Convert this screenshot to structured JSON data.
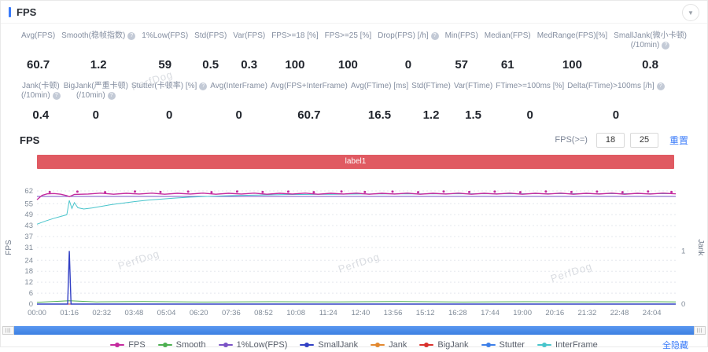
{
  "panel": {
    "title": "FPS"
  },
  "watermark": "PerfDog",
  "stats": {
    "row1": [
      {
        "lines": [
          "Avg(FPS)"
        ],
        "info": false,
        "value": "60.7"
      },
      {
        "lines": [
          "Smooth(稳帧指数)"
        ],
        "info": true,
        "value": "1.2"
      },
      {
        "lines": [
          "1%Low(FPS)"
        ],
        "info": false,
        "value": "59"
      },
      {
        "lines": [
          "Std(FPS)"
        ],
        "info": false,
        "value": "0.5"
      },
      {
        "lines": [
          "Var(FPS)"
        ],
        "info": false,
        "value": "0.3"
      },
      {
        "lines": [
          "FPS>=18 [%]"
        ],
        "info": false,
        "value": "100"
      },
      {
        "lines": [
          "FPS>=25 [%]"
        ],
        "info": false,
        "value": "100"
      },
      {
        "lines": [
          "Drop(FPS) [/h]"
        ],
        "info": true,
        "value": "0"
      },
      {
        "lines": [
          "Min(FPS)"
        ],
        "info": false,
        "value": "57"
      },
      {
        "lines": [
          "Median(FPS)"
        ],
        "info": false,
        "value": "61"
      },
      {
        "lines": [
          "MedRange(FPS)[%]"
        ],
        "info": false,
        "value": "100"
      },
      {
        "lines": [
          "SmallJank(微小卡顿)",
          "(/10min)"
        ],
        "info": true,
        "value": "0.8"
      }
    ],
    "row2": [
      {
        "lines": [
          "Jank(卡顿)",
          "(/10min)"
        ],
        "info": true,
        "value": "0.4"
      },
      {
        "lines": [
          "BigJank(严重卡顿)",
          "(/10min)"
        ],
        "info": true,
        "value": "0"
      },
      {
        "lines": [
          "Stutter(卡顿率) [%]"
        ],
        "info": true,
        "value": "0"
      },
      {
        "lines": [
          "Avg(InterFrame)"
        ],
        "info": false,
        "value": "0"
      },
      {
        "lines": [
          "Avg(FPS+InterFrame)"
        ],
        "info": false,
        "value": "60.7"
      },
      {
        "lines": [
          "Avg(FTime) [ms]"
        ],
        "info": false,
        "value": "16.5"
      },
      {
        "lines": [
          "Std(FTime)"
        ],
        "info": false,
        "value": "1.2"
      },
      {
        "lines": [
          "Var(FTime)"
        ],
        "info": false,
        "value": "1.5"
      },
      {
        "lines": [
          "FTime>=100ms [%]"
        ],
        "info": false,
        "value": "0"
      },
      {
        "lines": [
          "Delta(FTime)>100ms [/h]"
        ],
        "info": true,
        "value": "0"
      }
    ]
  },
  "chart_header": {
    "title": "FPS",
    "fps_ge_label": "FPS(>=)",
    "fps_min": "18",
    "fps_max": "25",
    "reset_label": "重置"
  },
  "banner": {
    "label": "label1",
    "color": "#e05a62"
  },
  "scrollbar": {
    "grip": "|||"
  },
  "legend": {
    "hide_all_label": "全隐藏",
    "items": [
      {
        "label": "FPS",
        "color": "#c42a9e"
      },
      {
        "label": "Smooth",
        "color": "#4caf50"
      },
      {
        "label": "1%Low(FPS)",
        "color": "#7a52c5"
      },
      {
        "label": "SmallJank",
        "color": "#3240c4"
      },
      {
        "label": "Jank",
        "color": "#e2882f"
      },
      {
        "label": "BigJank",
        "color": "#d9302c"
      },
      {
        "label": "Stutter",
        "color": "#3d7fe8"
      },
      {
        "label": "InterFrame",
        "color": "#47c4cb"
      }
    ]
  },
  "chart_data": {
    "type": "line",
    "title": "FPS over time with Jank events",
    "x_unit": "time (mm:ss)",
    "x_ticks": [
      "00:00",
      "01:16",
      "02:32",
      "03:48",
      "05:04",
      "06:20",
      "07:36",
      "08:52",
      "10:08",
      "11:24",
      "12:40",
      "13:56",
      "15:12",
      "16:28",
      "17:44",
      "19:00",
      "20:16",
      "21:32",
      "22:48",
      "24:04"
    ],
    "x_tick_seconds": [
      0,
      76,
      152,
      228,
      304,
      380,
      456,
      532,
      608,
      684,
      760,
      836,
      912,
      988,
      1064,
      1140,
      1216,
      1292,
      1368,
      1444
    ],
    "x_range_seconds": [
      0,
      1500
    ],
    "grid": "horizontal-dotted",
    "y_left": {
      "label": "FPS",
      "ticks": [
        0,
        6,
        12,
        18,
        24,
        31,
        37,
        43,
        49,
        55,
        62
      ],
      "range": [
        0,
        62
      ]
    },
    "y_right": {
      "label": "Jank",
      "ticks": [
        0,
        1
      ],
      "range": [
        0,
        2.13
      ]
    },
    "series": [
      {
        "name": "1%Low(FPS)",
        "color": "#7a52c5",
        "axis": "left",
        "width": 1,
        "points": [
          [
            0,
            59
          ],
          [
            1500,
            59
          ]
        ]
      },
      {
        "name": "Stutter",
        "color": "#3d7fe8",
        "axis": "left",
        "width": 1,
        "points": [
          [
            0,
            0
          ],
          [
            1500,
            0
          ]
        ]
      },
      {
        "name": "Jank",
        "color": "#e2882f",
        "axis": "right",
        "width": 1,
        "points": [
          [
            0,
            0
          ],
          [
            1500,
            0
          ]
        ]
      },
      {
        "name": "BigJank",
        "color": "#d9302c",
        "axis": "right",
        "width": 1,
        "points": [
          [
            0,
            0
          ],
          [
            1500,
            0
          ]
        ]
      },
      {
        "name": "Smooth",
        "color": "#4caf50",
        "axis": "left",
        "width": 1,
        "points": [
          [
            0,
            1.0
          ],
          [
            76,
            1.8
          ],
          [
            140,
            1.2
          ],
          [
            250,
            1.4
          ],
          [
            400,
            1.1
          ],
          [
            550,
            1.3
          ],
          [
            700,
            1.2
          ],
          [
            850,
            1.4
          ],
          [
            1000,
            1.1
          ],
          [
            1150,
            1.3
          ],
          [
            1300,
            1.2
          ],
          [
            1450,
            1.3
          ],
          [
            1500,
            1.2
          ]
        ]
      },
      {
        "name": "InterFrame",
        "color": "#47c4cb",
        "axis": "left",
        "width": 1,
        "points": [
          [
            0,
            43.8
          ],
          [
            20,
            45.5
          ],
          [
            40,
            47.0
          ],
          [
            58,
            48.2
          ],
          [
            70,
            48.9
          ],
          [
            76,
            56.8
          ],
          [
            82,
            52.4
          ],
          [
            88,
            55.6
          ],
          [
            96,
            52.8
          ],
          [
            110,
            52.1
          ],
          [
            130,
            52.7
          ],
          [
            150,
            53.5
          ],
          [
            175,
            54.5
          ],
          [
            200,
            55.3
          ],
          [
            230,
            56.2
          ],
          [
            260,
            56.9
          ],
          [
            290,
            57.5
          ],
          [
            320,
            58.0
          ],
          [
            360,
            58.6
          ],
          [
            400,
            59.0
          ],
          [
            440,
            59.3
          ],
          [
            480,
            59.6
          ],
          [
            530,
            59.8
          ],
          [
            580,
            60.0
          ],
          [
            640,
            60.1
          ],
          [
            700,
            60.2
          ],
          [
            760,
            60.3
          ],
          [
            830,
            60.35
          ],
          [
            900,
            60.4
          ],
          [
            1000,
            60.45
          ],
          [
            1100,
            60.45
          ],
          [
            1200,
            60.5
          ],
          [
            1300,
            60.5
          ],
          [
            1400,
            60.5
          ],
          [
            1500,
            60.5
          ]
        ]
      },
      {
        "name": "SmallJank",
        "color": "#3240c4",
        "axis": "right",
        "width": 1.4,
        "points": [
          [
            0,
            0
          ],
          [
            72,
            0
          ],
          [
            76,
            1
          ],
          [
            80,
            0
          ],
          [
            1500,
            0
          ]
        ]
      },
      {
        "name": "FPS",
        "color": "#c42a9e",
        "axis": "left",
        "width": 1.4,
        "points": [
          [
            0,
            57.2
          ],
          [
            12,
            59.6
          ],
          [
            24,
            60.4
          ],
          [
            40,
            60.6
          ],
          [
            56,
            60.2
          ],
          [
            70,
            59.4
          ],
          [
            76,
            58.8
          ],
          [
            88,
            60.1
          ],
          [
            120,
            60.3
          ],
          [
            150,
            60.8
          ],
          [
            180,
            60.2
          ],
          [
            210,
            60.7
          ],
          [
            240,
            60.3
          ],
          [
            270,
            60.8
          ],
          [
            300,
            60.2
          ],
          [
            330,
            60.7
          ],
          [
            360,
            60.3
          ],
          [
            390,
            60.8
          ],
          [
            420,
            60.2
          ],
          [
            450,
            60.7
          ],
          [
            480,
            60.3
          ],
          [
            510,
            60.8
          ],
          [
            540,
            60.2
          ],
          [
            570,
            60.7
          ],
          [
            600,
            60.3
          ],
          [
            630,
            60.8
          ],
          [
            660,
            60.2
          ],
          [
            690,
            60.7
          ],
          [
            720,
            60.3
          ],
          [
            750,
            60.8
          ],
          [
            780,
            60.2
          ],
          [
            810,
            60.7
          ],
          [
            840,
            60.3
          ],
          [
            870,
            60.8
          ],
          [
            900,
            60.2
          ],
          [
            930,
            60.7
          ],
          [
            960,
            60.3
          ],
          [
            990,
            60.8
          ],
          [
            1020,
            60.2
          ],
          [
            1050,
            60.7
          ],
          [
            1080,
            60.3
          ],
          [
            1110,
            60.8
          ],
          [
            1140,
            60.2
          ],
          [
            1170,
            60.7
          ],
          [
            1200,
            60.3
          ],
          [
            1230,
            60.8
          ],
          [
            1260,
            60.2
          ],
          [
            1290,
            60.7
          ],
          [
            1320,
            60.3
          ],
          [
            1350,
            60.8
          ],
          [
            1380,
            60.2
          ],
          [
            1410,
            60.7
          ],
          [
            1440,
            60.3
          ],
          [
            1470,
            60.8
          ],
          [
            1500,
            60.4
          ]
        ],
        "marker_points": [
          [
            30,
            61.4
          ],
          [
            95,
            61.6
          ],
          [
            160,
            61.3
          ],
          [
            230,
            61.7
          ],
          [
            290,
            61.4
          ],
          [
            355,
            61.6
          ],
          [
            410,
            61.3
          ],
          [
            470,
            61.7
          ],
          [
            530,
            61.4
          ],
          [
            590,
            61.6
          ],
          [
            650,
            61.3
          ],
          [
            715,
            61.7
          ],
          [
            770,
            61.4
          ],
          [
            835,
            61.6
          ],
          [
            895,
            61.3
          ],
          [
            955,
            61.7
          ],
          [
            1015,
            61.4
          ],
          [
            1075,
            61.6
          ],
          [
            1135,
            61.3
          ],
          [
            1195,
            61.7
          ],
          [
            1255,
            61.4
          ],
          [
            1315,
            61.6
          ],
          [
            1375,
            61.3
          ],
          [
            1435,
            61.7
          ],
          [
            1490,
            61.4
          ]
        ]
      }
    ]
  }
}
